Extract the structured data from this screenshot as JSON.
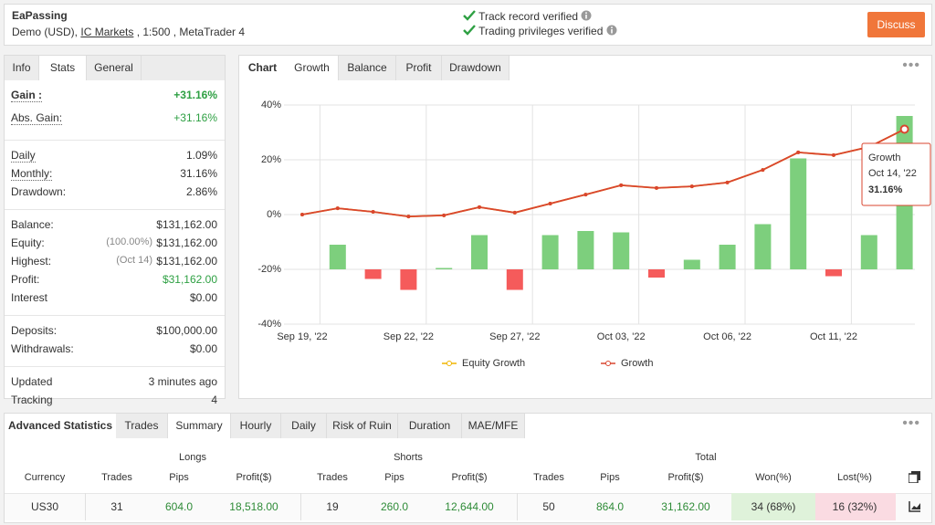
{
  "header": {
    "title": "EaPassing",
    "account_prefix": "Demo (USD),",
    "broker": "IC Markets",
    "account_suffix": ", 1:500 , MetaTrader 4",
    "verifications": [
      "Track record verified",
      "Trading privileges verified"
    ],
    "button": "Discuss"
  },
  "stats": {
    "tabs": [
      "Info",
      "Stats",
      "General"
    ],
    "active_tab": 1,
    "groups": [
      [
        {
          "label": "Gain :",
          "value": "+31.16%",
          "color": "#2ea043",
          "bold": true,
          "underline": true
        },
        {
          "label": "Abs. Gain:",
          "value": "+31.16%",
          "color": "#2ea043",
          "underline": true
        }
      ],
      [
        {
          "label": "Daily",
          "value": "1.09%",
          "underline": true
        },
        {
          "label": "Monthly:",
          "value": "31.16%",
          "underline": true
        },
        {
          "label": "Drawdown:",
          "value": "2.86%"
        }
      ],
      [
        {
          "label": "Balance:",
          "value": "$131,162.00"
        },
        {
          "label": "Equity:",
          "note": "(100.00%)",
          "value": "$131,162.00"
        },
        {
          "label": "Highest:",
          "note": "(Oct 14)",
          "value": "$131,162.00"
        },
        {
          "label": "Profit:",
          "value": "$31,162.00",
          "color": "#2ea043"
        },
        {
          "label": "Interest",
          "value": "$0.00"
        }
      ],
      [
        {
          "label": "Deposits:",
          "value": "$100,000.00"
        },
        {
          "label": "Withdrawals:",
          "value": "$0.00"
        }
      ],
      [
        {
          "label": "Updated",
          "value": "3 minutes ago"
        },
        {
          "label": "Tracking",
          "value": "4"
        }
      ]
    ]
  },
  "chart_panel": {
    "tabs": [
      "Chart",
      "Growth",
      "Balance",
      "Profit",
      "Drawdown"
    ],
    "active_tab": 1
  },
  "chart_data": {
    "type": "combo",
    "categories": [
      "Sep 19, '22",
      null,
      null,
      "Sep 22, '22",
      null,
      null,
      "Sep 27, '22",
      null,
      null,
      "Oct 03, '22",
      null,
      null,
      "Oct 06, '22",
      null,
      null,
      "Oct 11, '22",
      null,
      null
    ],
    "series": [
      {
        "type": "bar",
        "axis": "y2",
        "color": "#7dcf7d",
        "negative_color": "#f55b5b",
        "values": [
          null,
          1.8,
          -0.7,
          -1.5,
          0.1,
          2.5,
          -1.5,
          2.5,
          2.8,
          2.7,
          -0.6,
          0.7,
          1.8,
          3.3,
          8.1,
          -0.5,
          2.5,
          11.2
        ]
      },
      {
        "type": "line",
        "name": "Equity Growth",
        "color": "#f0b400",
        "values": [
          0,
          2.3,
          1,
          -0.7,
          -0.3,
          2.7,
          0.7,
          4,
          7.3,
          10.7,
          9.7,
          10.3,
          11.7,
          16.3,
          22.7,
          21.7,
          24.7,
          31.16
        ]
      },
      {
        "type": "line",
        "name": "Growth",
        "color": "#d9452f",
        "values": [
          0,
          2.3,
          1,
          -0.7,
          -0.3,
          2.7,
          0.7,
          4,
          7.3,
          10.7,
          9.7,
          10.3,
          11.7,
          16.3,
          22.7,
          21.7,
          24.7,
          31.16
        ]
      }
    ],
    "ylim": [
      -40,
      40
    ],
    "yticks": [
      {
        "value": -40,
        "label": "-40%"
      },
      {
        "value": -20,
        "label": "-20%"
      },
      {
        "value": 0,
        "label": "0%"
      },
      {
        "value": 20,
        "label": "20%"
      },
      {
        "value": 40,
        "label": "40%"
      }
    ],
    "y2lim": [
      -4,
      12
    ],
    "grid": true,
    "tooltip": {
      "series": "Growth",
      "date": "Oct 14, '22",
      "value": 31.16,
      "label": "31.16%"
    }
  },
  "advanced": {
    "tabs": [
      "Advanced Statistics",
      "Trades",
      "Summary",
      "Hourly",
      "Daily",
      "Risk of Ruin",
      "Duration",
      "MAE/MFE"
    ],
    "active_tab": 2,
    "group_headers": [
      "Longs",
      "Shorts",
      "Total"
    ],
    "columns": [
      "Currency",
      "Trades",
      "Pips",
      "Profit($)",
      "Trades",
      "Pips",
      "Profit($)",
      "Trades",
      "Pips",
      "Profit($)",
      "Won(%)",
      "Lost(%)"
    ],
    "rows": [
      [
        "US30",
        "31",
        "604.0",
        "18,518.00",
        "19",
        "260.0",
        "12,644.00",
        "50",
        "864.0",
        "31,162.00",
        "34 (68%)",
        "16 (32%)"
      ]
    ]
  }
}
